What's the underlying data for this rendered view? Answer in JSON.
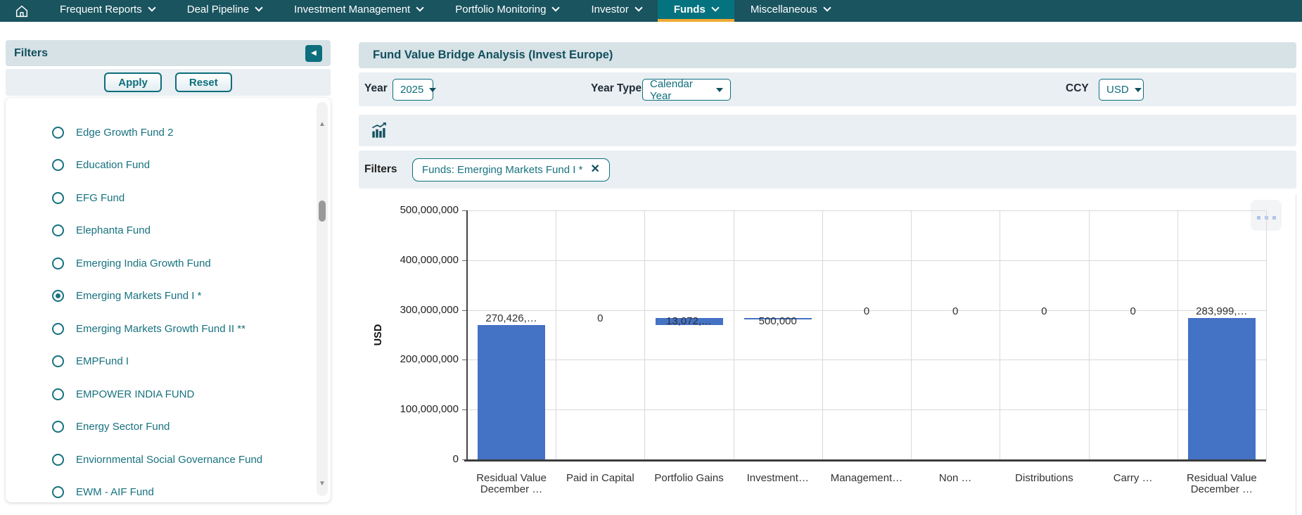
{
  "nav": {
    "items": [
      {
        "label": "Frequent Reports"
      },
      {
        "label": "Deal Pipeline"
      },
      {
        "label": "Investment Management"
      },
      {
        "label": "Portfolio Monitoring"
      },
      {
        "label": "Investor"
      },
      {
        "label": "Funds"
      },
      {
        "label": "Miscellaneous"
      }
    ],
    "active": "Funds"
  },
  "sidebar": {
    "title": "Filters",
    "apply_label": "Apply",
    "reset_label": "Reset",
    "funds": [
      {
        "label": "Edge Growth Fund 2",
        "selected": false
      },
      {
        "label": "Education Fund",
        "selected": false
      },
      {
        "label": "EFG Fund",
        "selected": false
      },
      {
        "label": "Elephanta Fund",
        "selected": false
      },
      {
        "label": "Emerging India Growth Fund",
        "selected": false
      },
      {
        "label": "Emerging Markets Fund I *",
        "selected": true
      },
      {
        "label": "Emerging Markets Growth Fund II **",
        "selected": false
      },
      {
        "label": "EMPFund I",
        "selected": false
      },
      {
        "label": "EMPOWER INDIA FUND",
        "selected": false
      },
      {
        "label": "Energy Sector Fund",
        "selected": false
      },
      {
        "label": "Enviornmental Social Governance Fund",
        "selected": false
      },
      {
        "label": "EWM - AIF Fund",
        "selected": false
      }
    ]
  },
  "main": {
    "title": "Fund Value Bridge Analysis (Invest Europe)",
    "controls": {
      "year_label": "Year",
      "year_value": "2025",
      "year_type_label": "Year Type",
      "year_type_value": "Calendar Year",
      "ccy_label": "CCY",
      "ccy_value": "USD"
    },
    "filters_label": "Filters",
    "filter_chip": "Funds: Emerging Markets Fund I *"
  },
  "chart_data": {
    "type": "bar",
    "subtype": "waterfall-bridge",
    "title": "",
    "xlabel": "",
    "ylabel": "USD",
    "ylim": [
      0,
      500000000
    ],
    "grid": true,
    "bar_color": "#4472c4",
    "yticks": [
      {
        "label": "500,000,000",
        "value": 500000000
      },
      {
        "label": "400,000,000",
        "value": 400000000
      },
      {
        "label": "300,000,000",
        "value": 300000000
      },
      {
        "label": "200,000,000",
        "value": 200000000
      },
      {
        "label": "100,000,000",
        "value": 100000000
      },
      {
        "label": "0",
        "value": 0
      }
    ],
    "bars": [
      {
        "category_lines": [
          "Residual Value",
          "December …"
        ],
        "value_label": "270,426,…",
        "from": 0,
        "to": 270426000
      },
      {
        "category_lines": [
          "Paid in Capital"
        ],
        "value_label": "0",
        "from": 270426000,
        "to": 270426000
      },
      {
        "category_lines": [
          "Portfolio Gains"
        ],
        "value_label": "13,072,…",
        "from": 270426000,
        "to": 283498000
      },
      {
        "category_lines": [
          "Investment…"
        ],
        "value_label": "500,000",
        "from": 283498000,
        "to": 283998000
      },
      {
        "category_lines": [
          "Management…"
        ],
        "value_label": "0",
        "from": 283998000,
        "to": 283998000
      },
      {
        "category_lines": [
          "Non …"
        ],
        "value_label": "0",
        "from": 283998000,
        "to": 283998000
      },
      {
        "category_lines": [
          "Distributions"
        ],
        "value_label": "0",
        "from": 283998000,
        "to": 283998000
      },
      {
        "category_lines": [
          "Carry …"
        ],
        "value_label": "0",
        "from": 283998000,
        "to": 283998000
      },
      {
        "category_lines": [
          "Residual Value",
          "December …"
        ],
        "value_label": "283,999,…",
        "from": 0,
        "to": 283999000
      }
    ]
  },
  "colors": {
    "accent_teal": "#0d6e7d",
    "nav_bg": "#19545f",
    "active_tab_bg": "#05737f",
    "active_tab_underline": "#f0a832",
    "header_bg": "#d7e2e6",
    "row_bg": "#e9eff2",
    "bar_blue": "#4472c4",
    "link_teal": "#17727f",
    "heading_teal": "#12505e"
  }
}
